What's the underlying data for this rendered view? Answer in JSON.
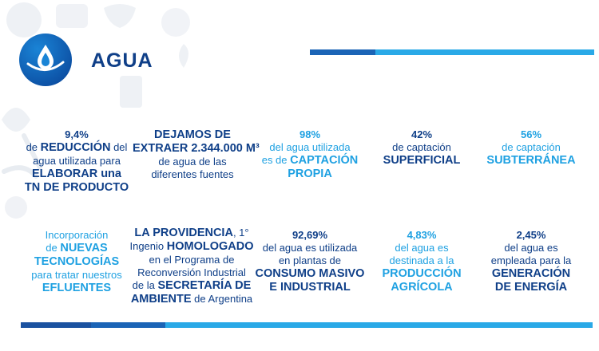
{
  "header": {
    "title": "AGUA"
  },
  "icons": {
    "logo": "water-drop-icon",
    "background": "food-industry-doodles"
  },
  "colors": {
    "navy": "#0f3f88",
    "cyan": "#1fa1e2",
    "bar_dark": "#1b52a0",
    "bar_mid": "#1b64b6",
    "bar_light": "#2aa9e7"
  },
  "row1": {
    "c1": {
      "l1": "9,4%",
      "l2a": "de ",
      "l2b": "REDUCCIÓN",
      "l2c": " del",
      "l3": "agua utilizada para",
      "l4": "ELABORAR una",
      "l5": "TN DE PRODUCTO"
    },
    "c2": {
      "l1": "DEJAMOS DE",
      "l2": "EXTRAER 2.344.000 M³",
      "l3": "de agua de las",
      "l4": "diferentes fuentes"
    },
    "c3": {
      "l1": "98%",
      "l2": "del agua utilizada",
      "l3a": "es de ",
      "l3b": "CAPTACIÓN",
      "l4": "PROPIA"
    },
    "c4": {
      "l1": "42%",
      "l2": "de captación",
      "l3": "SUPERFICIAL"
    },
    "c5": {
      "l1": "56%",
      "l2": "de captación",
      "l3": "SUBTERRÁNEA"
    }
  },
  "row2": {
    "c1": {
      "l1": "Incorporación",
      "l2a": "de ",
      "l2b": "NUEVAS",
      "l3": "TECNOLOGÍAS",
      "l4": "para tratar nuestros",
      "l5": "EFLUENTES"
    },
    "c2": {
      "l1a": "LA PROVIDENCIA",
      "l1b": ", 1°",
      "l2a": "Ingenio ",
      "l2b": "HOMOLOGADO",
      "l3": "en el Programa de",
      "l4": "Reconversión Industrial",
      "l5a": "de la ",
      "l5b": "SECRETARÍA DE",
      "l6a": "AMBIENTE",
      "l6b": " de Argentina"
    },
    "c3": {
      "l1": "92,69%",
      "l2": "del agua es utilizada",
      "l3": "en plantas de",
      "l4": "CONSUMO MASIVO",
      "l5": "E INDUSTRIAL"
    },
    "c4": {
      "l1": "4,83%",
      "l2": "del agua es",
      "l3": "destinada a la",
      "l4": "PRODUCCIÓN",
      "l5": "AGRÍCOLA"
    },
    "c5": {
      "l1": "2,45%",
      "l2": "del agua es",
      "l3": "empleada para la",
      "l4": "GENERACIÓN",
      "l5": "DE ENERGÍA"
    }
  }
}
